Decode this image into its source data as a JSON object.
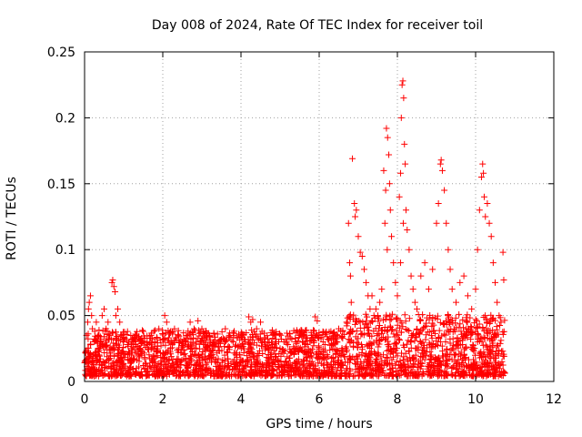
{
  "chart_data": {
    "type": "scatter",
    "title": "Day 008 of 2024, Rate Of TEC Index for receiver toil",
    "xlabel": "GPS time / hours",
    "ylabel": "ROTI / TECUs",
    "xlim": [
      0,
      12
    ],
    "ylim": [
      0,
      0.25
    ],
    "x_ticks": [
      0,
      2,
      4,
      6,
      8,
      10,
      12
    ],
    "x_tick_labels": [
      "0",
      "2",
      "4",
      "6",
      "8",
      "10",
      "12"
    ],
    "y_ticks": [
      0,
      0.05,
      0.1,
      0.15,
      0.2,
      0.25
    ],
    "y_tick_labels": [
      "0",
      "0.05",
      "0.1",
      "0.15",
      "0.2",
      "0.25"
    ],
    "grid": true,
    "marker": "+",
    "marker_color": "#ff0000",
    "series": [
      {
        "name": "ROTI",
        "color": "#ff0000",
        "points": [
          [
            0.05,
            0.035
          ],
          [
            0.08,
            0.045
          ],
          [
            0.1,
            0.055
          ],
          [
            0.12,
            0.06
          ],
          [
            0.15,
            0.065
          ],
          [
            0.18,
            0.05
          ],
          [
            0.2,
            0.04
          ],
          [
            0.25,
            0.03
          ],
          [
            0.3,
            0.045
          ],
          [
            0.35,
            0.035
          ],
          [
            0.4,
            0.03
          ],
          [
            0.45,
            0.05
          ],
          [
            0.5,
            0.055
          ],
          [
            0.55,
            0.04
          ],
          [
            0.6,
            0.045
          ],
          [
            0.65,
            0.035
          ],
          [
            0.7,
            0.075
          ],
          [
            0.72,
            0.077
          ],
          [
            0.75,
            0.072
          ],
          [
            0.78,
            0.068
          ],
          [
            0.8,
            0.05
          ],
          [
            0.85,
            0.055
          ],
          [
            0.9,
            0.045
          ],
          [
            0.95,
            0.035
          ],
          [
            1.0,
            0.03
          ],
          [
            1.1,
            0.028
          ],
          [
            1.2,
            0.025
          ],
          [
            1.3,
            0.035
          ],
          [
            1.4,
            0.032
          ],
          [
            1.5,
            0.038
          ],
          [
            1.6,
            0.03
          ],
          [
            1.7,
            0.035
          ],
          [
            1.8,
            0.03
          ],
          [
            1.9,
            0.04
          ],
          [
            2.0,
            0.032
          ],
          [
            2.05,
            0.05
          ],
          [
            2.1,
            0.045
          ],
          [
            2.2,
            0.038
          ],
          [
            2.3,
            0.04
          ],
          [
            2.4,
            0.035
          ],
          [
            2.5,
            0.03
          ],
          [
            2.6,
            0.035
          ],
          [
            2.7,
            0.045
          ],
          [
            2.8,
            0.04
          ],
          [
            2.9,
            0.046
          ],
          [
            3.0,
            0.04
          ],
          [
            3.1,
            0.038
          ],
          [
            3.2,
            0.035
          ],
          [
            3.3,
            0.03
          ],
          [
            3.4,
            0.036
          ],
          [
            3.5,
            0.032
          ],
          [
            3.6,
            0.04
          ],
          [
            3.7,
            0.035
          ],
          [
            3.8,
            0.03
          ],
          [
            3.9,
            0.033
          ],
          [
            4.0,
            0.036
          ],
          [
            4.1,
            0.03
          ],
          [
            4.2,
            0.049
          ],
          [
            4.25,
            0.045
          ],
          [
            4.3,
            0.047
          ],
          [
            4.4,
            0.04
          ],
          [
            4.5,
            0.045
          ],
          [
            4.6,
            0.03
          ],
          [
            4.7,
            0.025
          ],
          [
            4.8,
            0.028
          ],
          [
            4.9,
            0.03
          ],
          [
            5.0,
            0.025
          ],
          [
            5.1,
            0.03
          ],
          [
            5.2,
            0.028
          ],
          [
            5.3,
            0.032
          ],
          [
            5.4,
            0.03
          ],
          [
            5.5,
            0.035
          ],
          [
            5.6,
            0.03
          ],
          [
            5.7,
            0.028
          ],
          [
            5.8,
            0.035
          ],
          [
            5.9,
            0.049
          ],
          [
            5.95,
            0.046
          ],
          [
            6.0,
            0.035
          ],
          [
            6.1,
            0.03
          ],
          [
            6.2,
            0.034
          ],
          [
            6.3,
            0.038
          ],
          [
            6.4,
            0.035
          ],
          [
            6.5,
            0.04
          ],
          [
            6.6,
            0.038
          ],
          [
            6.7,
            0.045
          ],
          [
            6.85,
            0.169
          ],
          [
            6.9,
            0.135
          ],
          [
            6.92,
            0.125
          ],
          [
            6.95,
            0.13
          ],
          [
            7.0,
            0.11
          ],
          [
            7.05,
            0.098
          ],
          [
            7.1,
            0.095
          ],
          [
            7.15,
            0.085
          ],
          [
            7.2,
            0.075
          ],
          [
            7.25,
            0.065
          ],
          [
            7.3,
            0.055
          ],
          [
            6.75,
            0.12
          ],
          [
            6.78,
            0.09
          ],
          [
            6.8,
            0.08
          ],
          [
            6.82,
            0.06
          ],
          [
            7.35,
            0.065
          ],
          [
            7.4,
            0.05
          ],
          [
            7.45,
            0.055
          ],
          [
            7.5,
            0.05
          ],
          [
            7.55,
            0.06
          ],
          [
            7.6,
            0.07
          ],
          [
            7.65,
            0.16
          ],
          [
            7.7,
            0.145
          ],
          [
            7.72,
            0.192
          ],
          [
            7.75,
            0.185
          ],
          [
            7.78,
            0.172
          ],
          [
            7.8,
            0.15
          ],
          [
            7.82,
            0.13
          ],
          [
            7.85,
            0.11
          ],
          [
            7.9,
            0.09
          ],
          [
            7.95,
            0.075
          ],
          [
            8.0,
            0.065
          ],
          [
            7.68,
            0.12
          ],
          [
            7.74,
            0.1
          ],
          [
            8.05,
            0.14
          ],
          [
            8.08,
            0.158
          ],
          [
            8.1,
            0.2
          ],
          [
            8.12,
            0.225
          ],
          [
            8.14,
            0.228
          ],
          [
            8.16,
            0.215
          ],
          [
            8.18,
            0.18
          ],
          [
            8.2,
            0.165
          ],
          [
            8.22,
            0.13
          ],
          [
            8.25,
            0.115
          ],
          [
            8.3,
            0.1
          ],
          [
            8.35,
            0.08
          ],
          [
            8.4,
            0.07
          ],
          [
            8.45,
            0.06
          ],
          [
            8.5,
            0.055
          ],
          [
            8.15,
            0.12
          ],
          [
            8.08,
            0.09
          ],
          [
            8.6,
            0.08
          ],
          [
            8.7,
            0.09
          ],
          [
            8.8,
            0.07
          ],
          [
            8.9,
            0.085
          ],
          [
            9.0,
            0.12
          ],
          [
            9.05,
            0.135
          ],
          [
            9.1,
            0.165
          ],
          [
            9.12,
            0.168
          ],
          [
            9.15,
            0.16
          ],
          [
            9.2,
            0.145
          ],
          [
            9.25,
            0.12
          ],
          [
            9.3,
            0.1
          ],
          [
            9.35,
            0.085
          ],
          [
            9.4,
            0.07
          ],
          [
            9.5,
            0.06
          ],
          [
            9.6,
            0.075
          ],
          [
            9.7,
            0.08
          ],
          [
            9.8,
            0.065
          ],
          [
            9.9,
            0.055
          ],
          [
            10.0,
            0.07
          ],
          [
            10.05,
            0.1
          ],
          [
            10.1,
            0.13
          ],
          [
            10.15,
            0.155
          ],
          [
            10.18,
            0.165
          ],
          [
            10.2,
            0.158
          ],
          [
            10.22,
            0.14
          ],
          [
            10.25,
            0.125
          ],
          [
            10.3,
            0.135
          ],
          [
            10.35,
            0.12
          ],
          [
            10.4,
            0.11
          ],
          [
            10.45,
            0.09
          ],
          [
            10.5,
            0.075
          ],
          [
            10.55,
            0.06
          ],
          [
            10.6,
            0.05
          ],
          [
            10.65,
            0.045
          ],
          [
            10.7,
            0.098
          ],
          [
            10.72,
            0.077
          ]
        ]
      }
    ],
    "dense_band": {
      "x_range": [
        0,
        10.75
      ],
      "y_low": 0.0,
      "y_high": 0.035,
      "y_typical": 0.015
    }
  }
}
